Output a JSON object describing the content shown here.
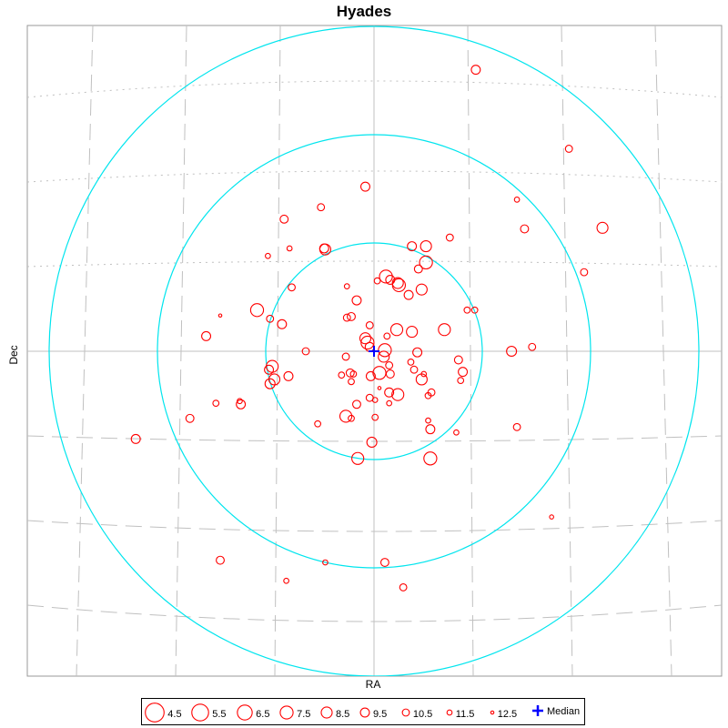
{
  "chart_data": {
    "type": "scatter",
    "title": "Hyades",
    "xlabel": "RA",
    "ylabel": "Dec",
    "grid": true,
    "legend_position": "bottom",
    "colors": {
      "stars": "#ff0000",
      "median": "#0000ff",
      "rings": "#00e5ee",
      "grid": "#c0c0c0"
    },
    "legend": {
      "magnitudes": [
        "4.5",
        "5.5",
        "6.5",
        "7.5",
        "8.5",
        "9.5",
        "10.5",
        "11.5",
        "12.5"
      ],
      "median_label": "Median"
    },
    "median": {
      "x": 0,
      "y": 0
    },
    "rings": [
      1,
      2,
      3
    ],
    "points": [
      {
        "x": 0.94,
        "y": 2.6,
        "mag": 9.5
      },
      {
        "x": 1.8,
        "y": 1.87,
        "mag": 10.5
      },
      {
        "x": 1.32,
        "y": 1.4,
        "mag": 11.5
      },
      {
        "x": -0.08,
        "y": 1.52,
        "mag": 9.5
      },
      {
        "x": -0.49,
        "y": 1.33,
        "mag": 10.5
      },
      {
        "x": -0.83,
        "y": 1.22,
        "mag": 10.0
      },
      {
        "x": 1.39,
        "y": 1.13,
        "mag": 10.0
      },
      {
        "x": 2.11,
        "y": 1.14,
        "mag": 8.5
      },
      {
        "x": 0.7,
        "y": 1.05,
        "mag": 10.5
      },
      {
        "x": 0.48,
        "y": 0.97,
        "mag": 8.5
      },
      {
        "x": 0.35,
        "y": 0.97,
        "mag": 9.5
      },
      {
        "x": -0.78,
        "y": 0.95,
        "mag": 11.5
      },
      {
        "x": -0.46,
        "y": 0.95,
        "mag": 9.5
      },
      {
        "x": -0.45,
        "y": 0.94,
        "mag": 8.5
      },
      {
        "x": -0.98,
        "y": 0.88,
        "mag": 11.5
      },
      {
        "x": 0.48,
        "y": 0.82,
        "mag": 7.5
      },
      {
        "x": 0.41,
        "y": 0.76,
        "mag": 10.0
      },
      {
        "x": 1.94,
        "y": 0.73,
        "mag": 10.5
      },
      {
        "x": 0.11,
        "y": 0.69,
        "mag": 7.5
      },
      {
        "x": 0.15,
        "y": 0.66,
        "mag": 9.5
      },
      {
        "x": 0.03,
        "y": 0.65,
        "mag": 11.0
      },
      {
        "x": 0.22,
        "y": 0.63,
        "mag": 8.5
      },
      {
        "x": 0.23,
        "y": 0.61,
        "mag": 7.5
      },
      {
        "x": -0.25,
        "y": 0.6,
        "mag": 11.5
      },
      {
        "x": -0.76,
        "y": 0.59,
        "mag": 10.5
      },
      {
        "x": 0.44,
        "y": 0.57,
        "mag": 8.5
      },
      {
        "x": 0.32,
        "y": 0.52,
        "mag": 9.5
      },
      {
        "x": -0.16,
        "y": 0.47,
        "mag": 9.5
      },
      {
        "x": -1.08,
        "y": 0.38,
        "mag": 7.5
      },
      {
        "x": 0.86,
        "y": 0.38,
        "mag": 11.0
      },
      {
        "x": 0.93,
        "y": 0.38,
        "mag": 11.0
      },
      {
        "x": -0.96,
        "y": 0.3,
        "mag": 10.5
      },
      {
        "x": -1.42,
        "y": 0.33,
        "mag": 12.5
      },
      {
        "x": -0.21,
        "y": 0.32,
        "mag": 10.0
      },
      {
        "x": -0.25,
        "y": 0.31,
        "mag": 10.5
      },
      {
        "x": -0.85,
        "y": 0.25,
        "mag": 9.5
      },
      {
        "x": 0.21,
        "y": 0.2,
        "mag": 8.0
      },
      {
        "x": 0.35,
        "y": 0.18,
        "mag": 8.5
      },
      {
        "x": 0.65,
        "y": 0.2,
        "mag": 8.0
      },
      {
        "x": -0.04,
        "y": 0.24,
        "mag": 10.5
      },
      {
        "x": 0.12,
        "y": 0.14,
        "mag": 11.0
      },
      {
        "x": -1.55,
        "y": 0.14,
        "mag": 9.5
      },
      {
        "x": -0.08,
        "y": 0.12,
        "mag": 8.5
      },
      {
        "x": -0.06,
        "y": 0.08,
        "mag": 7.5
      },
      {
        "x": -0.04,
        "y": 0.04,
        "mag": 9.5
      },
      {
        "x": 0.1,
        "y": 0.01,
        "mag": 7.5
      },
      {
        "x": 0.4,
        "y": -0.01,
        "mag": 9.5
      },
      {
        "x": -0.63,
        "y": -0.0,
        "mag": 10.5
      },
      {
        "x": 1.27,
        "y": -0.0,
        "mag": 9.0
      },
      {
        "x": 1.46,
        "y": 0.04,
        "mag": 10.5
      },
      {
        "x": -0.26,
        "y": -0.05,
        "mag": 10.5
      },
      {
        "x": 0.09,
        "y": -0.05,
        "mag": 8.5
      },
      {
        "x": 0.34,
        "y": -0.1,
        "mag": 11.0
      },
      {
        "x": 0.78,
        "y": -0.08,
        "mag": 10.0
      },
      {
        "x": 0.14,
        "y": -0.13,
        "mag": 10.5
      },
      {
        "x": -0.94,
        "y": -0.14,
        "mag": 8.0
      },
      {
        "x": -0.97,
        "y": -0.17,
        "mag": 9.5
      },
      {
        "x": 0.37,
        "y": -0.17,
        "mag": 10.5
      },
      {
        "x": 0.05,
        "y": -0.2,
        "mag": 7.5
      },
      {
        "x": -0.22,
        "y": -0.2,
        "mag": 10.0
      },
      {
        "x": -0.3,
        "y": -0.22,
        "mag": 11.0
      },
      {
        "x": -0.19,
        "y": -0.21,
        "mag": 11.0
      },
      {
        "x": 0.15,
        "y": -0.21,
        "mag": 10.0
      },
      {
        "x": 0.82,
        "y": -0.19,
        "mag": 9.5
      },
      {
        "x": 0.46,
        "y": -0.21,
        "mag": 11.5
      },
      {
        "x": -0.79,
        "y": -0.23,
        "mag": 9.5
      },
      {
        "x": -0.03,
        "y": -0.23,
        "mag": 9.5
      },
      {
        "x": -0.92,
        "y": -0.26,
        "mag": 8.5
      },
      {
        "x": 0.44,
        "y": -0.26,
        "mag": 8.5
      },
      {
        "x": -0.21,
        "y": -0.28,
        "mag": 11.0
      },
      {
        "x": 0.8,
        "y": -0.27,
        "mag": 11.0
      },
      {
        "x": -0.96,
        "y": -0.3,
        "mag": 9.0
      },
      {
        "x": 0.05,
        "y": -0.34,
        "mag": 12.5
      },
      {
        "x": 0.14,
        "y": -0.38,
        "mag": 9.5
      },
      {
        "x": 0.22,
        "y": -0.4,
        "mag": 8.0
      },
      {
        "x": 0.5,
        "y": -0.41,
        "mag": 11.0
      },
      {
        "x": 0.53,
        "y": -0.38,
        "mag": 10.5
      },
      {
        "x": -0.04,
        "y": -0.43,
        "mag": 10.5
      },
      {
        "x": 0.01,
        "y": -0.45,
        "mag": 11.5
      },
      {
        "x": 0.14,
        "y": -0.48,
        "mag": 11.5
      },
      {
        "x": -1.24,
        "y": -0.46,
        "mag": 11.5
      },
      {
        "x": -1.46,
        "y": -0.48,
        "mag": 11.0
      },
      {
        "x": -1.23,
        "y": -0.49,
        "mag": 9.5
      },
      {
        "x": -0.16,
        "y": -0.49,
        "mag": 10.0
      },
      {
        "x": -1.7,
        "y": -0.62,
        "mag": 10.0
      },
      {
        "x": -0.26,
        "y": -0.6,
        "mag": 8.0
      },
      {
        "x": -0.21,
        "y": -0.62,
        "mag": 11.0
      },
      {
        "x": -0.52,
        "y": -0.67,
        "mag": 11.0
      },
      {
        "x": 0.01,
        "y": -0.61,
        "mag": 11.0
      },
      {
        "x": 0.5,
        "y": -0.64,
        "mag": 11.5
      },
      {
        "x": 0.52,
        "y": -0.72,
        "mag": 9.5
      },
      {
        "x": 0.76,
        "y": -0.75,
        "mag": 11.5
      },
      {
        "x": 1.32,
        "y": -0.7,
        "mag": 10.5
      },
      {
        "x": -2.2,
        "y": -0.81,
        "mag": 9.5
      },
      {
        "x": -0.02,
        "y": -0.84,
        "mag": 9.0
      },
      {
        "x": -0.15,
        "y": -0.99,
        "mag": 8.0
      },
      {
        "x": 0.52,
        "y": -0.99,
        "mag": 7.5
      },
      {
        "x": 1.64,
        "y": -1.53,
        "mag": 12.0
      },
      {
        "x": -1.42,
        "y": -1.93,
        "mag": 10.0
      },
      {
        "x": -0.45,
        "y": -1.95,
        "mag": 11.5
      },
      {
        "x": 0.1,
        "y": -1.95,
        "mag": 10.0
      },
      {
        "x": -0.81,
        "y": -2.12,
        "mag": 11.5
      },
      {
        "x": 0.27,
        "y": -2.18,
        "mag": 10.5
      }
    ]
  }
}
